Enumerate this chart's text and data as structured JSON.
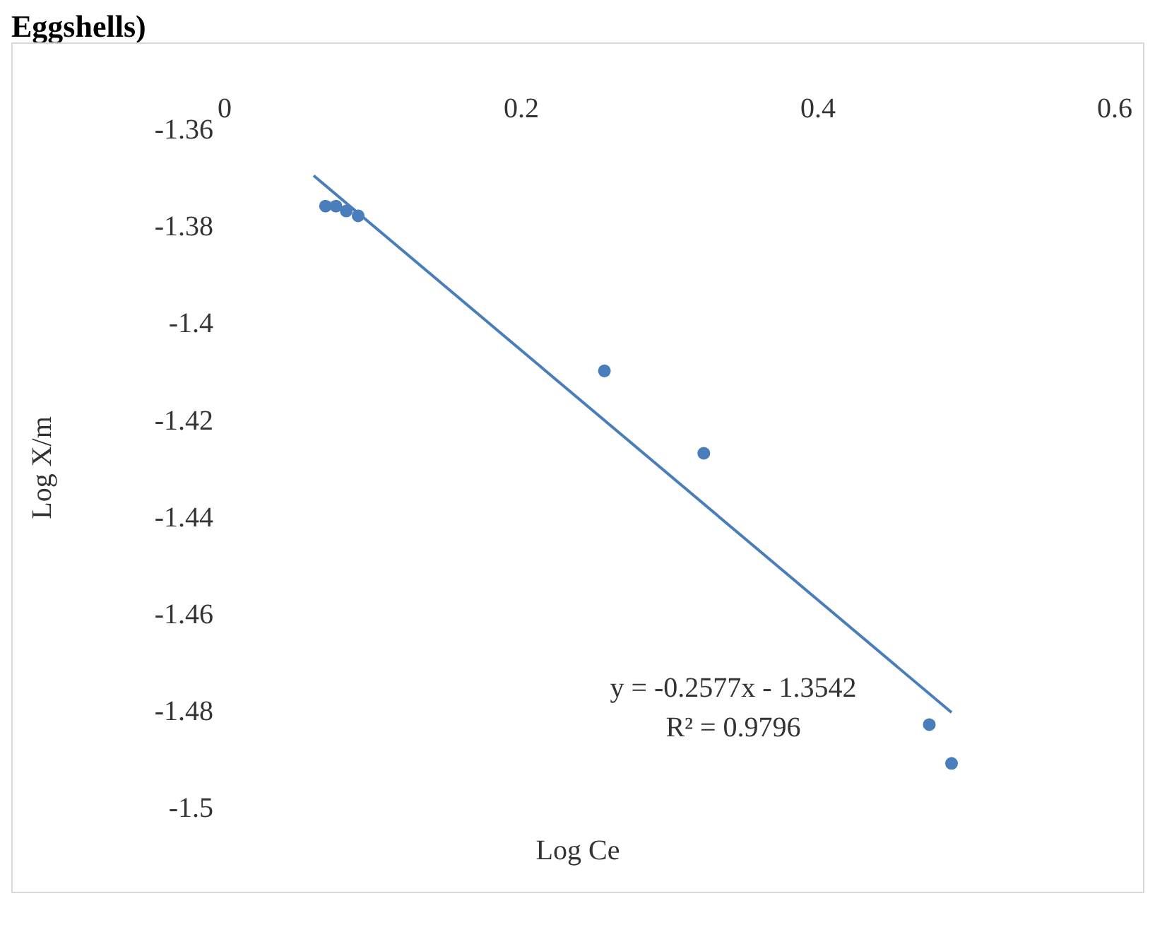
{
  "chart_data": {
    "type": "scatter",
    "title": "Eggshells)",
    "xlabel": "Log Ce",
    "ylabel": "Log X/m",
    "xlim": [
      0,
      0.6
    ],
    "xticks": [
      0,
      0.2,
      0.4,
      0.6
    ],
    "ylim": [
      -1.5,
      -1.36
    ],
    "yticks": [
      -1.36,
      -1.38,
      -1.4,
      -1.42,
      -1.44,
      -1.46,
      -1.48,
      -1.5
    ],
    "grid": false,
    "series": [
      {
        "color": "#4a7ebb",
        "marker": "circle",
        "x": [
          0.068,
          0.075,
          0.082,
          0.09,
          0.256,
          0.323,
          0.475,
          0.49
        ],
        "values": [
          -1.376,
          -1.376,
          -1.377,
          -1.378,
          -1.41,
          -1.427,
          -1.483,
          -1.491
        ]
      },
      {
        "type": "line",
        "color": "#4a7ebb",
        "x": [
          0.06,
          0.49
        ],
        "values": [
          -1.3697,
          -1.4805
        ]
      }
    ],
    "annotations": [
      "y = -0.2577x - 1.3542",
      "R² = 0.9796"
    ]
  }
}
